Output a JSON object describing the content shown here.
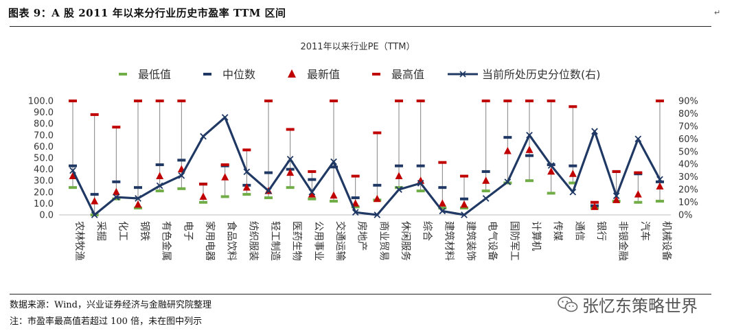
{
  "header": {
    "title": "图表 9：A 股 2011 年以来分行业历史市盈率 TTM 区间",
    "para_mark": "↵"
  },
  "footer": {
    "source": "数据来源：Wind，兴业证券经济与金融研究院整理",
    "note": "注：市盈率最高值若超过 100 倍，未在图中列示",
    "para_mark": "↵"
  },
  "watermark": {
    "text": "张忆东策略世界",
    "icon": "wechat-icon"
  },
  "colors": {
    "min": "#70AD47",
    "median": "#1F3864",
    "latest": "#C00000",
    "max": "#C00000",
    "percentile": "#1F3864",
    "whisker": "#808080"
  },
  "chart_data": {
    "type": "line",
    "title": "2011年以来行业PE（TTM）",
    "categories": [
      "农林牧渔",
      "采掘",
      "化工",
      "钢铁",
      "有色金属",
      "电子",
      "家用电器",
      "食品饮料",
      "纺织服装",
      "轻工制造",
      "医药生物",
      "公用事业",
      "交通运输",
      "房地产",
      "商业贸易",
      "休闲服务",
      "综合",
      "建筑材料",
      "建筑装饰",
      "电气设备",
      "国防军工",
      "计算机",
      "传媒",
      "通信",
      "银行",
      "非银金融",
      "汽车",
      "机械设备"
    ],
    "left_axis": {
      "min": 0,
      "max": 100,
      "step": 10,
      "tick_labels": [
        "0.0",
        "10.0",
        "20.0",
        "30.0",
        "40.0",
        "50.0",
        "60.0",
        "70.0",
        "80.0",
        "90.0",
        "100.0"
      ]
    },
    "right_axis": {
      "min": 0,
      "max": 90,
      "step": 10,
      "tick_labels": [
        "0%",
        "10%",
        "20%",
        "30%",
        "40%",
        "50%",
        "60%",
        "70%",
        "80%",
        "90%"
      ]
    },
    "legend": [
      "最低值",
      "中位数",
      "最新值",
      "最高值",
      "当前所处历史分位数(右)"
    ],
    "legend_position": "top",
    "grid": false,
    "series": [
      {
        "name": "最低值",
        "axis": "left",
        "values": [
          24,
          0,
          14,
          6,
          21,
          23,
          11,
          16,
          18,
          15,
          24,
          14,
          12,
          7,
          13,
          24,
          21,
          6,
          6,
          21,
          28,
          30,
          19,
          28,
          6,
          12,
          11,
          12
        ]
      },
      {
        "name": "中位数",
        "axis": "left",
        "values": [
          43,
          18,
          29,
          24,
          44,
          48,
          27,
          43,
          26,
          37,
          40,
          31,
          42,
          15,
          26,
          43,
          43,
          24,
          14,
          38,
          68,
          52,
          44,
          43,
          8,
          38,
          36,
          29
        ]
      },
      {
        "name": "最新值",
        "axis": "left",
        "values": [
          34,
          12,
          20,
          9,
          34,
          40,
          16,
          33,
          24,
          21,
          37,
          18,
          17,
          10,
          14,
          34,
          30,
          10,
          9,
          30,
          56,
          57,
          38,
          36,
          7,
          13,
          18,
          25
        ]
      },
      {
        "name": "最高值",
        "axis": "left",
        "values": [
          100,
          88,
          77,
          100,
          100,
          100,
          27,
          44,
          57,
          100,
          75,
          38,
          100,
          34,
          72,
          100,
          100,
          46,
          34,
          100,
          100,
          100,
          100,
          95,
          11,
          38,
          37,
          100
        ]
      },
      {
        "name": "当前所处历史分位数(右)",
        "axis": "right",
        "values": [
          35,
          0,
          14,
          13,
          23,
          31,
          62,
          77,
          34,
          19,
          44,
          18,
          42,
          2,
          0,
          20,
          25,
          3,
          0,
          13,
          26,
          63,
          39,
          18,
          66,
          15,
          60,
          28
        ]
      }
    ]
  }
}
